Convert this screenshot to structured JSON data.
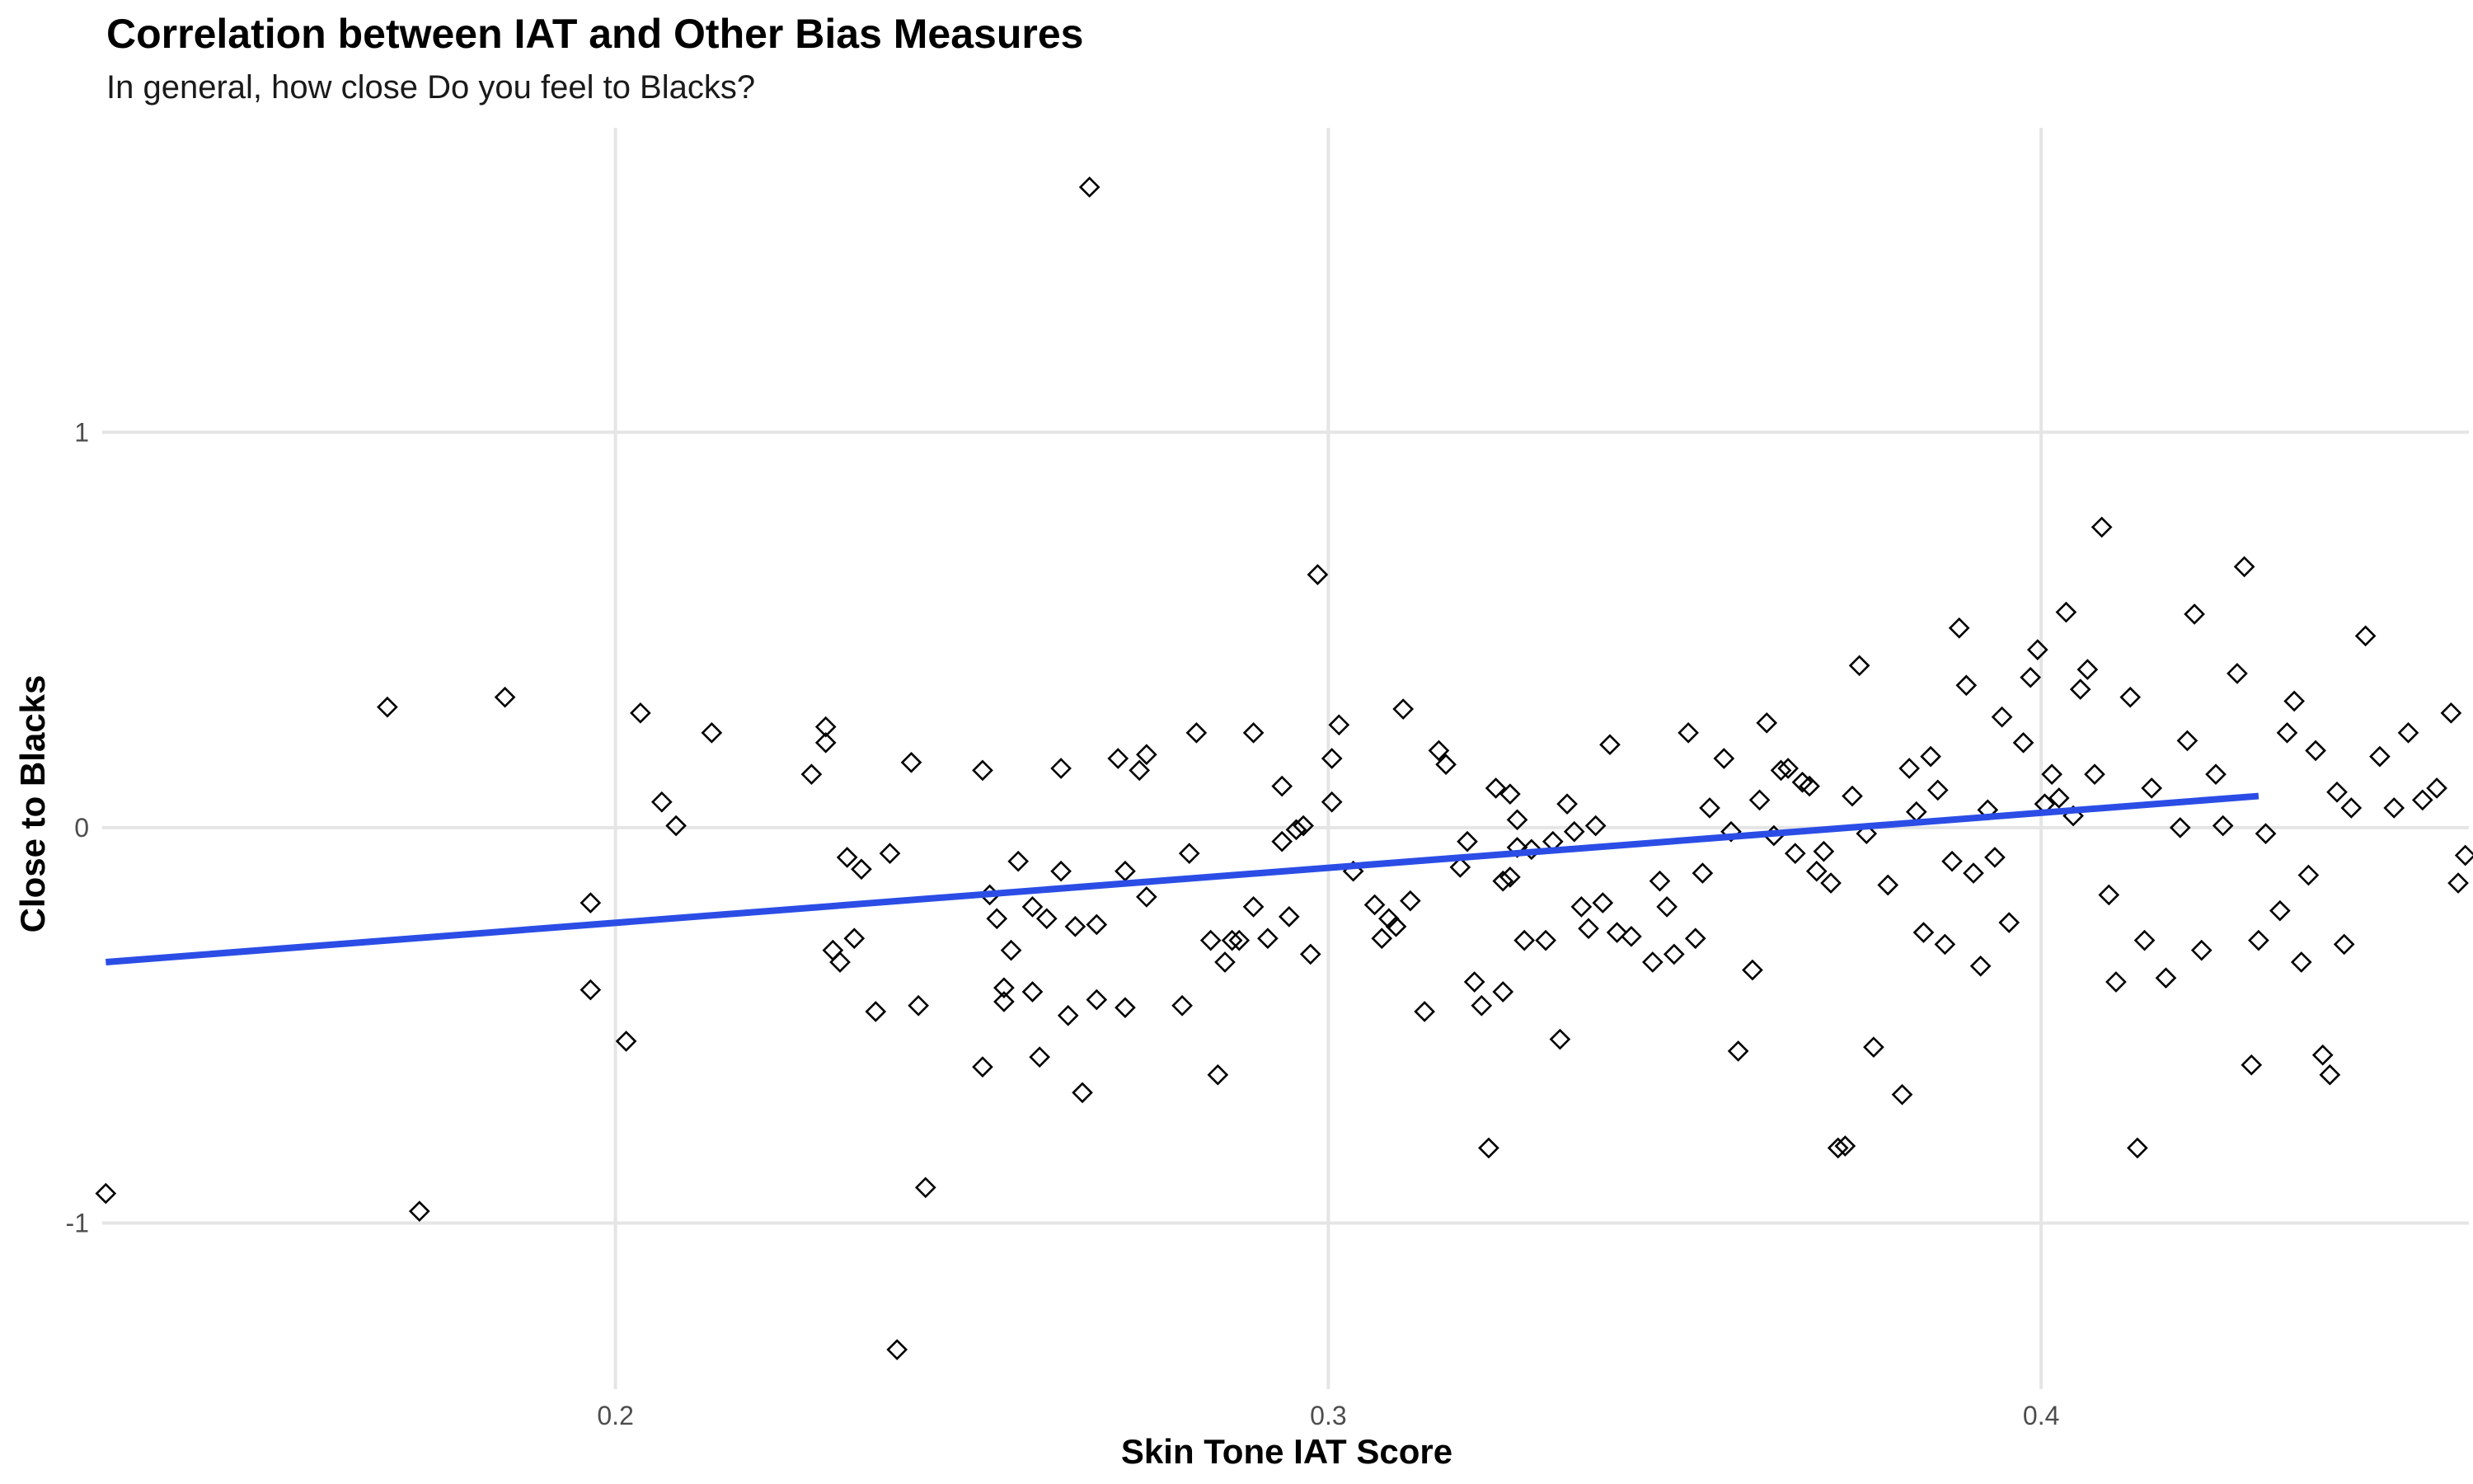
{
  "chart_data": {
    "type": "scatter",
    "title": "Correlation between IAT and Other Bias Measures",
    "subtitle": "In general, how close Do you feel to Blacks?",
    "xlabel": "Skin Tone IAT Score",
    "ylabel": "Close to Blacks",
    "xlim": [
      0.128,
      0.46
    ],
    "ylim": [
      -1.42,
      1.77
    ],
    "x_ticks": [
      {
        "value": 0.2,
        "label": "0.2"
      },
      {
        "value": 0.3,
        "label": "0.3"
      },
      {
        "value": 0.4,
        "label": "0.4"
      }
    ],
    "y_ticks": [
      {
        "value": 1,
        "label": "1"
      },
      {
        "value": 0,
        "label": "0"
      },
      {
        "value": -1,
        "label": "-1"
      }
    ],
    "grid": true,
    "marker": "diamond-open",
    "marker_color": "#000000",
    "trend_line": {
      "x": [
        0.1285,
        0.4305
      ],
      "y": [
        -0.34,
        0.08
      ],
      "color": "#2b4de6"
    },
    "points": [
      [
        0.1285,
        -0.925
      ],
      [
        0.168,
        0.305
      ],
      [
        0.1725,
        -0.97
      ],
      [
        0.1845,
        0.33
      ],
      [
        0.1965,
        -0.19
      ],
      [
        0.1965,
        -0.41
      ],
      [
        0.2015,
        -0.54
      ],
      [
        0.2035,
        0.29
      ],
      [
        0.2065,
        0.065
      ],
      [
        0.2085,
        0.005
      ],
      [
        0.2135,
        0.24
      ],
      [
        0.2275,
        0.135
      ],
      [
        0.2295,
        0.255
      ],
      [
        0.2295,
        0.215
      ],
      [
        0.2305,
        -0.31
      ],
      [
        0.2315,
        -0.34
      ],
      [
        0.2325,
        -0.075
      ],
      [
        0.2335,
        -0.28
      ],
      [
        0.2345,
        -0.105
      ],
      [
        0.2365,
        -0.465
      ],
      [
        0.2385,
        -0.065
      ],
      [
        0.2395,
        -1.32
      ],
      [
        0.2415,
        0.165
      ],
      [
        0.2425,
        -0.45
      ],
      [
        0.2435,
        -0.91
      ],
      [
        0.2515,
        0.145
      ],
      [
        0.2515,
        -0.605
      ],
      [
        0.2525,
        -0.17
      ],
      [
        0.2535,
        -0.23
      ],
      [
        0.2545,
        -0.405
      ],
      [
        0.2545,
        -0.44
      ],
      [
        0.2555,
        -0.31
      ],
      [
        0.2565,
        -0.085
      ],
      [
        0.2585,
        -0.415
      ],
      [
        0.2585,
        -0.2
      ],
      [
        0.2595,
        -0.58
      ],
      [
        0.2605,
        -0.23
      ],
      [
        0.2625,
        0.15
      ],
      [
        0.2625,
        -0.11
      ],
      [
        0.2635,
        -0.475
      ],
      [
        0.2645,
        -0.25
      ],
      [
        0.2655,
        -0.67
      ],
      [
        0.2665,
        1.62
      ],
      [
        0.2675,
        -0.435
      ],
      [
        0.2675,
        -0.245
      ],
      [
        0.2705,
        0.175
      ],
      [
        0.2715,
        -0.455
      ],
      [
        0.2715,
        -0.11
      ],
      [
        0.2735,
        0.145
      ],
      [
        0.2745,
        -0.175
      ],
      [
        0.2745,
        0.185
      ],
      [
        0.2795,
        -0.45
      ],
      [
        0.2805,
        -0.065
      ],
      [
        0.2815,
        0.24
      ],
      [
        0.2835,
        -0.285
      ],
      [
        0.2845,
        -0.625
      ],
      [
        0.2855,
        -0.34
      ],
      [
        0.2865,
        -0.285
      ],
      [
        0.2875,
        -0.285
      ],
      [
        0.2895,
        -0.2
      ],
      [
        0.2895,
        0.24
      ],
      [
        0.2915,
        -0.28
      ],
      [
        0.2935,
        0.105
      ],
      [
        0.2935,
        -0.035
      ],
      [
        0.2945,
        -0.225
      ],
      [
        0.2955,
        -0.005
      ],
      [
        0.2965,
        0.005
      ],
      [
        0.2975,
        -0.32
      ],
      [
        0.2985,
        0.64
      ],
      [
        0.3005,
        0.065
      ],
      [
        0.3005,
        0.175
      ],
      [
        0.3015,
        0.26
      ],
      [
        0.3035,
        -0.11
      ],
      [
        0.3065,
        -0.195
      ],
      [
        0.3075,
        -0.28
      ],
      [
        0.3085,
        -0.23
      ],
      [
        0.3095,
        -0.25
      ],
      [
        0.3105,
        0.3
      ],
      [
        0.3115,
        -0.185
      ],
      [
        0.3135,
        -0.465
      ],
      [
        0.3155,
        0.195
      ],
      [
        0.3165,
        0.16
      ],
      [
        0.3185,
        -0.1
      ],
      [
        0.3195,
        -0.035
      ],
      [
        0.3205,
        -0.39
      ],
      [
        0.3215,
        -0.45
      ],
      [
        0.3225,
        -0.81
      ],
      [
        0.3235,
        0.1
      ],
      [
        0.3245,
        -0.415
      ],
      [
        0.3245,
        -0.135
      ],
      [
        0.3255,
        -0.125
      ],
      [
        0.3255,
        0.085
      ],
      [
        0.3265,
        -0.05
      ],
      [
        0.3265,
        0.02
      ],
      [
        0.3275,
        -0.285
      ],
      [
        0.3285,
        -0.055
      ],
      [
        0.3305,
        -0.285
      ],
      [
        0.3315,
        -0.035
      ],
      [
        0.3325,
        -0.535
      ],
      [
        0.3335,
        0.06
      ],
      [
        0.3345,
        -0.01
      ],
      [
        0.3355,
        -0.2
      ],
      [
        0.3365,
        -0.255
      ],
      [
        0.3375,
        0.005
      ],
      [
        0.3385,
        -0.19
      ],
      [
        0.3395,
        0.21
      ],
      [
        0.3405,
        -0.265
      ],
      [
        0.3425,
        -0.275
      ],
      [
        0.3455,
        -0.34
      ],
      [
        0.3465,
        -0.135
      ],
      [
        0.3475,
        -0.2
      ],
      [
        0.3485,
        -0.32
      ],
      [
        0.3505,
        0.24
      ],
      [
        0.3515,
        -0.28
      ],
      [
        0.3525,
        -0.115
      ],
      [
        0.3535,
        0.05
      ],
      [
        0.3555,
        0.175
      ],
      [
        0.3565,
        -0.01
      ],
      [
        0.3575,
        -0.565
      ],
      [
        0.3595,
        -0.36
      ],
      [
        0.3605,
        0.07
      ],
      [
        0.3615,
        0.265
      ],
      [
        0.3625,
        -0.02
      ],
      [
        0.3635,
        0.145
      ],
      [
        0.3645,
        0.15
      ],
      [
        0.3655,
        -0.065
      ],
      [
        0.3665,
        0.115
      ],
      [
        0.3675,
        0.105
      ],
      [
        0.3685,
        -0.11
      ],
      [
        0.3695,
        -0.06
      ],
      [
        0.3705,
        -0.14
      ],
      [
        0.3715,
        -0.81
      ],
      [
        0.3725,
        -0.805
      ],
      [
        0.3735,
        0.08
      ],
      [
        0.3745,
        0.41
      ],
      [
        0.3755,
        -0.015
      ],
      [
        0.3765,
        -0.555
      ],
      [
        0.3785,
        -0.145
      ],
      [
        0.3805,
        -0.675
      ],
      [
        0.3815,
        0.15
      ],
      [
        0.3825,
        0.04
      ],
      [
        0.3835,
        -0.265
      ],
      [
        0.3845,
        0.18
      ],
      [
        0.3855,
        0.095
      ],
      [
        0.3865,
        -0.295
      ],
      [
        0.3875,
        -0.085
      ],
      [
        0.3885,
        0.505
      ],
      [
        0.3895,
        0.36
      ],
      [
        0.3905,
        -0.115
      ],
      [
        0.3915,
        -0.35
      ],
      [
        0.3925,
        0.045
      ],
      [
        0.3935,
        -0.075
      ],
      [
        0.3945,
        0.28
      ],
      [
        0.3955,
        -0.24
      ],
      [
        0.3975,
        0.215
      ],
      [
        0.3985,
        0.38
      ],
      [
        0.3995,
        0.45
      ],
      [
        0.4005,
        0.06
      ],
      [
        0.4015,
        0.135
      ],
      [
        0.4025,
        0.075
      ],
      [
        0.4035,
        0.545
      ],
      [
        0.4045,
        0.03
      ],
      [
        0.4055,
        0.35
      ],
      [
        0.4065,
        0.4
      ],
      [
        0.4075,
        0.135
      ],
      [
        0.4085,
        0.76
      ],
      [
        0.4095,
        -0.17
      ],
      [
        0.4105,
        -0.39
      ],
      [
        0.4125,
        0.33
      ],
      [
        0.4135,
        -0.81
      ],
      [
        0.4145,
        -0.285
      ],
      [
        0.4155,
        0.1
      ],
      [
        0.4175,
        -0.38
      ],
      [
        0.4195,
        0.0
      ],
      [
        0.4205,
        0.22
      ],
      [
        0.4215,
        0.54
      ],
      [
        0.4225,
        -0.31
      ],
      [
        0.4245,
        0.135
      ],
      [
        0.4255,
        0.005
      ],
      [
        0.4275,
        0.39
      ],
      [
        0.4285,
        0.66
      ],
      [
        0.4295,
        -0.6
      ],
      [
        0.4305,
        -0.285
      ],
      [
        0.4315,
        -0.015
      ],
      [
        0.4335,
        -0.21
      ],
      [
        0.4345,
        0.24
      ],
      [
        0.4355,
        0.32
      ],
      [
        0.4365,
        -0.34
      ],
      [
        0.4375,
        -0.12
      ],
      [
        0.4385,
        0.195
      ],
      [
        0.4395,
        -0.575
      ],
      [
        0.4405,
        -0.625
      ],
      [
        0.4415,
        0.09
      ],
      [
        0.4425,
        -0.295
      ],
      [
        0.4435,
        0.05
      ],
      [
        0.4455,
        0.485
      ],
      [
        0.4475,
        0.18
      ],
      [
        0.4495,
        0.05
      ],
      [
        0.4515,
        0.24
      ],
      [
        0.4535,
        0.07
      ],
      [
        0.4555,
        0.1
      ],
      [
        0.4575,
        0.29
      ],
      [
        0.4585,
        -0.14
      ],
      [
        0.4595,
        -0.07
      ]
    ]
  }
}
